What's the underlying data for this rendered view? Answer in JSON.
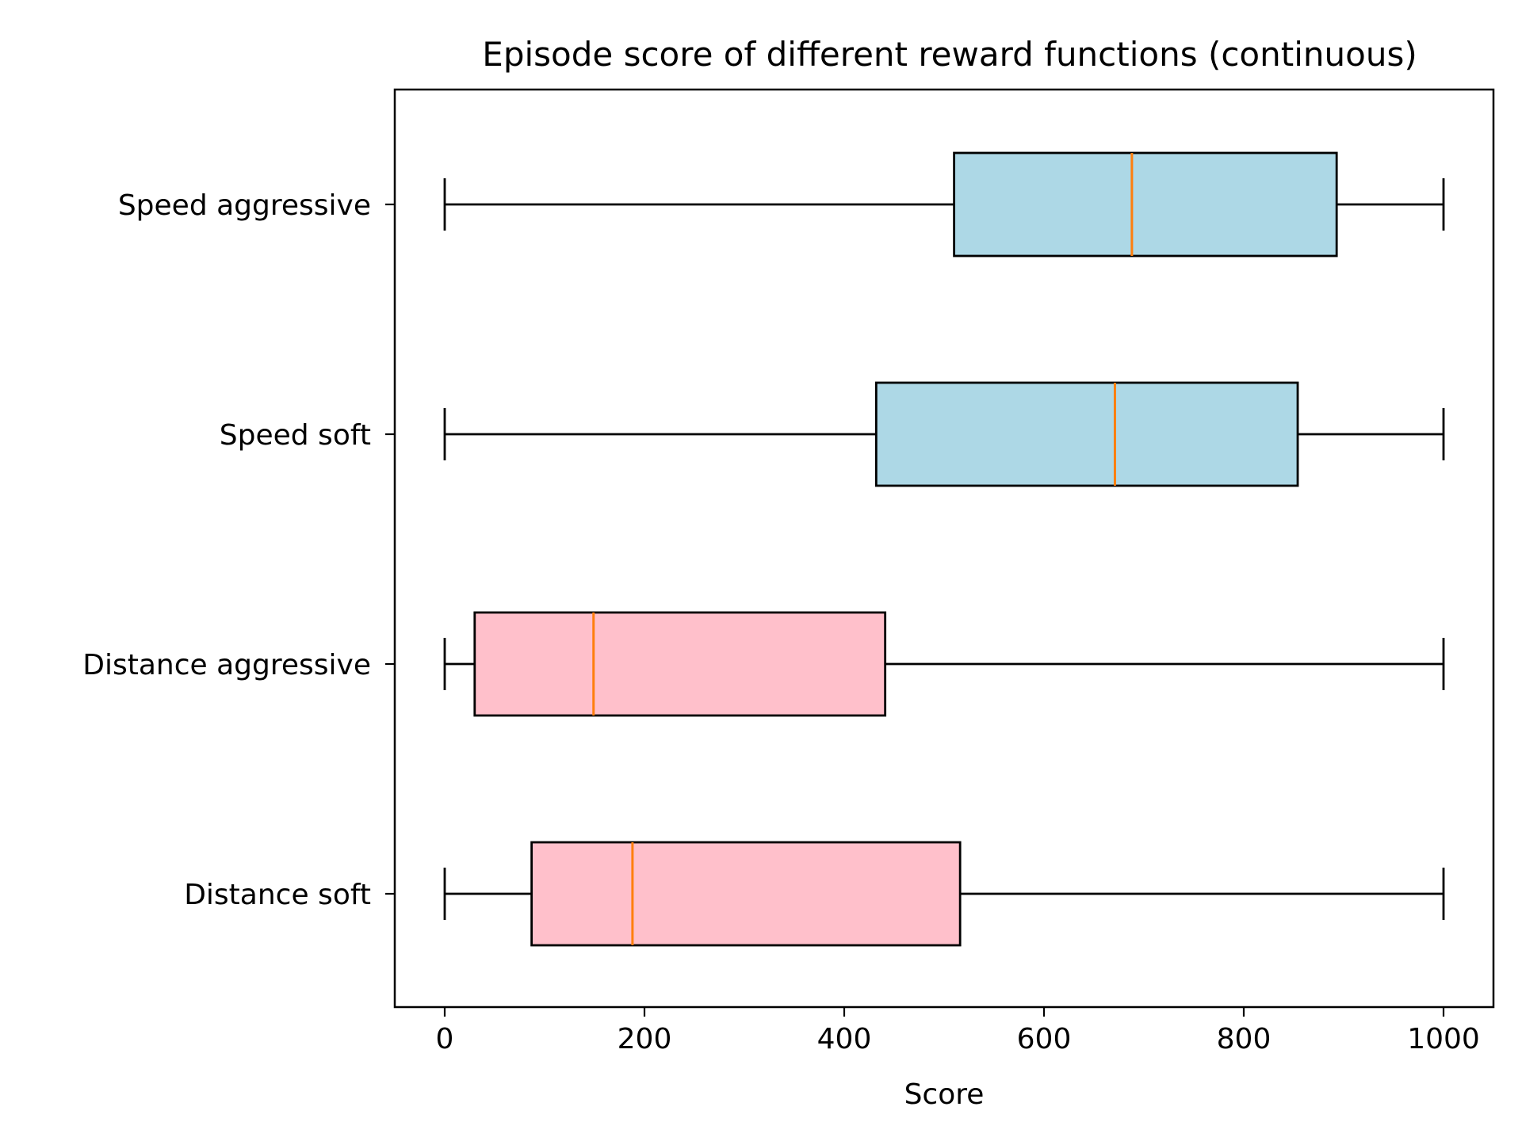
{
  "chart_data": {
    "type": "boxplot",
    "orientation": "horizontal",
    "title": "Episode score of different reward functions (continuous)",
    "xlabel": "Score",
    "ylabel": "",
    "xlim": [
      -50,
      1050
    ],
    "x_ticks": [
      0,
      200,
      400,
      600,
      800,
      1000
    ],
    "grid": false,
    "median_color": "#ff7f0e",
    "series": [
      {
        "name": "Speed aggressive",
        "whisker_low": 0,
        "q1": 510,
        "median": 688,
        "q3": 893,
        "whisker_high": 1000,
        "color": "#add8e6"
      },
      {
        "name": "Speed soft",
        "whisker_low": 0,
        "q1": 432,
        "median": 671,
        "q3": 854,
        "whisker_high": 1000,
        "color": "#add8e6"
      },
      {
        "name": "Distance aggressive",
        "whisker_low": 0,
        "q1": 30,
        "median": 149,
        "q3": 441,
        "whisker_high": 1000,
        "color": "#ffc0cb"
      },
      {
        "name": "Distance soft",
        "whisker_low": 0,
        "q1": 87,
        "median": 188,
        "q3": 516,
        "whisker_high": 1000,
        "color": "#ffc0cb"
      }
    ]
  }
}
